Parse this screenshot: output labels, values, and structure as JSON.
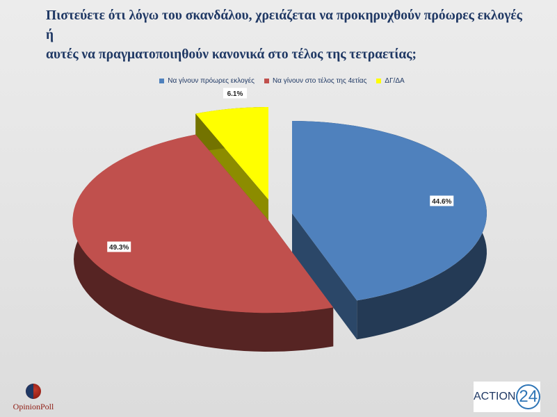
{
  "title": {
    "line1": "Πιστεύετε ότι λόγω του σκανδάλου, χρειάζεται να προκηρυχθούν πρόωρες εκλογές ή",
    "line2": "αυτές να πραγματοποιηθούν κανονικά στο τέλος της τετραετίας;"
  },
  "chart_data": {
    "type": "pie",
    "title": "Πιστεύετε ότι λόγω του σκανδάλου, χρειάζεται να προκηρυχθούν πρόωρες εκλογές ή αυτές να πραγματοποιηθούν κανονικά στο τέλος της τετραετίας;",
    "legend_position": "top",
    "three_d": true,
    "exploded": true,
    "slices": [
      {
        "label": "Να γίνουν πρόωρες εκλογές",
        "value": 44.6,
        "display": "44.6%",
        "color": "#4f81bd"
      },
      {
        "label": "Να γίνουν στο τέλος της 4ετίας",
        "value": 49.3,
        "display": "49.3%",
        "color": "#c0504d"
      },
      {
        "label": "ΔΓ/ΔΑ",
        "value": 6.1,
        "display": "6.1%",
        "color": "#ffff00"
      }
    ]
  },
  "logos": {
    "left_text": "OpinionPoll",
    "right_text": "ACTION",
    "right_number": "24"
  }
}
